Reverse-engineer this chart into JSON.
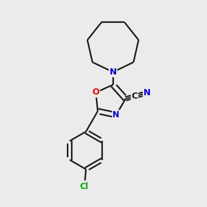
{
  "background_color": "#ebebeb",
  "bond_color": "#1a1a1a",
  "atom_colors": {
    "N": "#0000cc",
    "O": "#ee0000",
    "Cl": "#00aa00",
    "C": "#1a1a1a"
  },
  "figsize": [
    3.0,
    3.0
  ],
  "dpi": 100,
  "xlim": [
    0,
    10
  ],
  "ylim": [
    0,
    10
  ]
}
